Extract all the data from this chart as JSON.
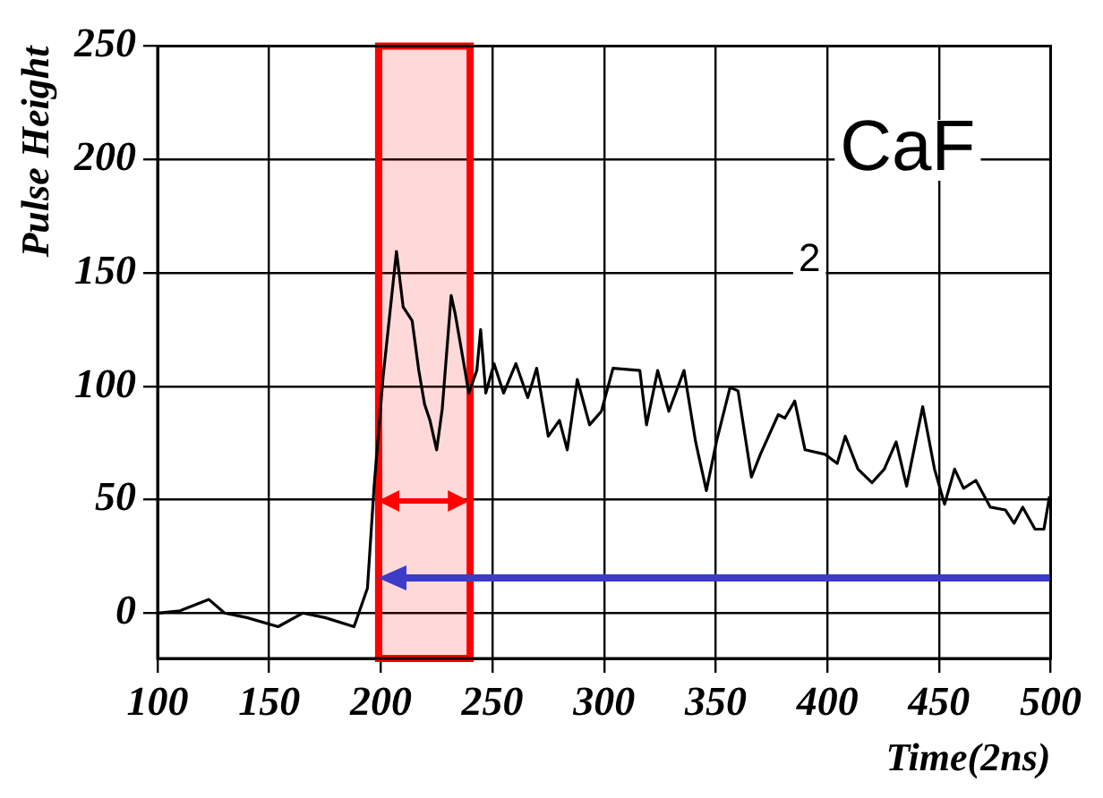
{
  "chart_data": {
    "type": "line",
    "xlabel": "Time(2ns)",
    "ylabel": "Pulse Height",
    "annotations": [
      "CaF",
      "2"
    ],
    "xlim": [
      100,
      500
    ],
    "ylim": [
      -20,
      250
    ],
    "xticks": [
      100,
      150,
      200,
      250,
      300,
      350,
      400,
      450,
      500
    ],
    "yticks": [
      0,
      50,
      100,
      150,
      200,
      250
    ],
    "grid": true,
    "marker": "none",
    "line_style": "solid",
    "bands": [
      {
        "axis": "x",
        "from": 199,
        "to": 240,
        "color": "#ff0000"
      }
    ],
    "series": [
      {
        "color": "#000000",
        "x": [
          100,
          110,
          123,
          130,
          140,
          154,
          165,
          175,
          188,
          194,
          197,
          201,
          207,
          210,
          214,
          217,
          219.6,
          222,
          225,
          227.5,
          231.5,
          233.3,
          237,
          239.4,
          243,
          244.7,
          247,
          250.7,
          255,
          260.5,
          265.8,
          269.8,
          275,
          280,
          283.5,
          288,
          293.5,
          298.8,
          304,
          316,
          319,
          324,
          329,
          335.8,
          341,
          345.8,
          350.3,
          356.4,
          360,
          366,
          370,
          378,
          381,
          385.4,
          390,
          399,
          404.4,
          408,
          413.7,
          420,
          425.5,
          430.8,
          435.5,
          442.7,
          448,
          452.5,
          457,
          461,
          466.5,
          473,
          479.7,
          483.6,
          487.5,
          493,
          497,
          499.5
        ],
        "values": [
          0,
          1,
          6,
          0,
          -2,
          -6,
          0,
          -2,
          -6,
          11,
          56,
          104,
          159.5,
          135,
          129,
          107,
          92,
          85,
          72,
          90,
          140,
          132,
          111,
          97,
          107,
          125,
          97,
          110,
          97,
          110,
          95,
          108,
          78,
          85,
          72,
          103,
          83,
          89,
          108,
          107,
          83,
          107,
          89,
          107,
          75.5,
          54,
          75.5,
          99.5,
          98,
          60,
          70,
          87.5,
          86,
          93.5,
          72,
          70,
          66,
          78,
          63.5,
          57.5,
          63.5,
          75.5,
          56,
          91,
          63.5,
          48,
          63.5,
          55,
          58.5,
          46.7,
          45.5,
          39.6,
          46.7,
          37,
          37,
          51.5
        ]
      }
    ]
  }
}
